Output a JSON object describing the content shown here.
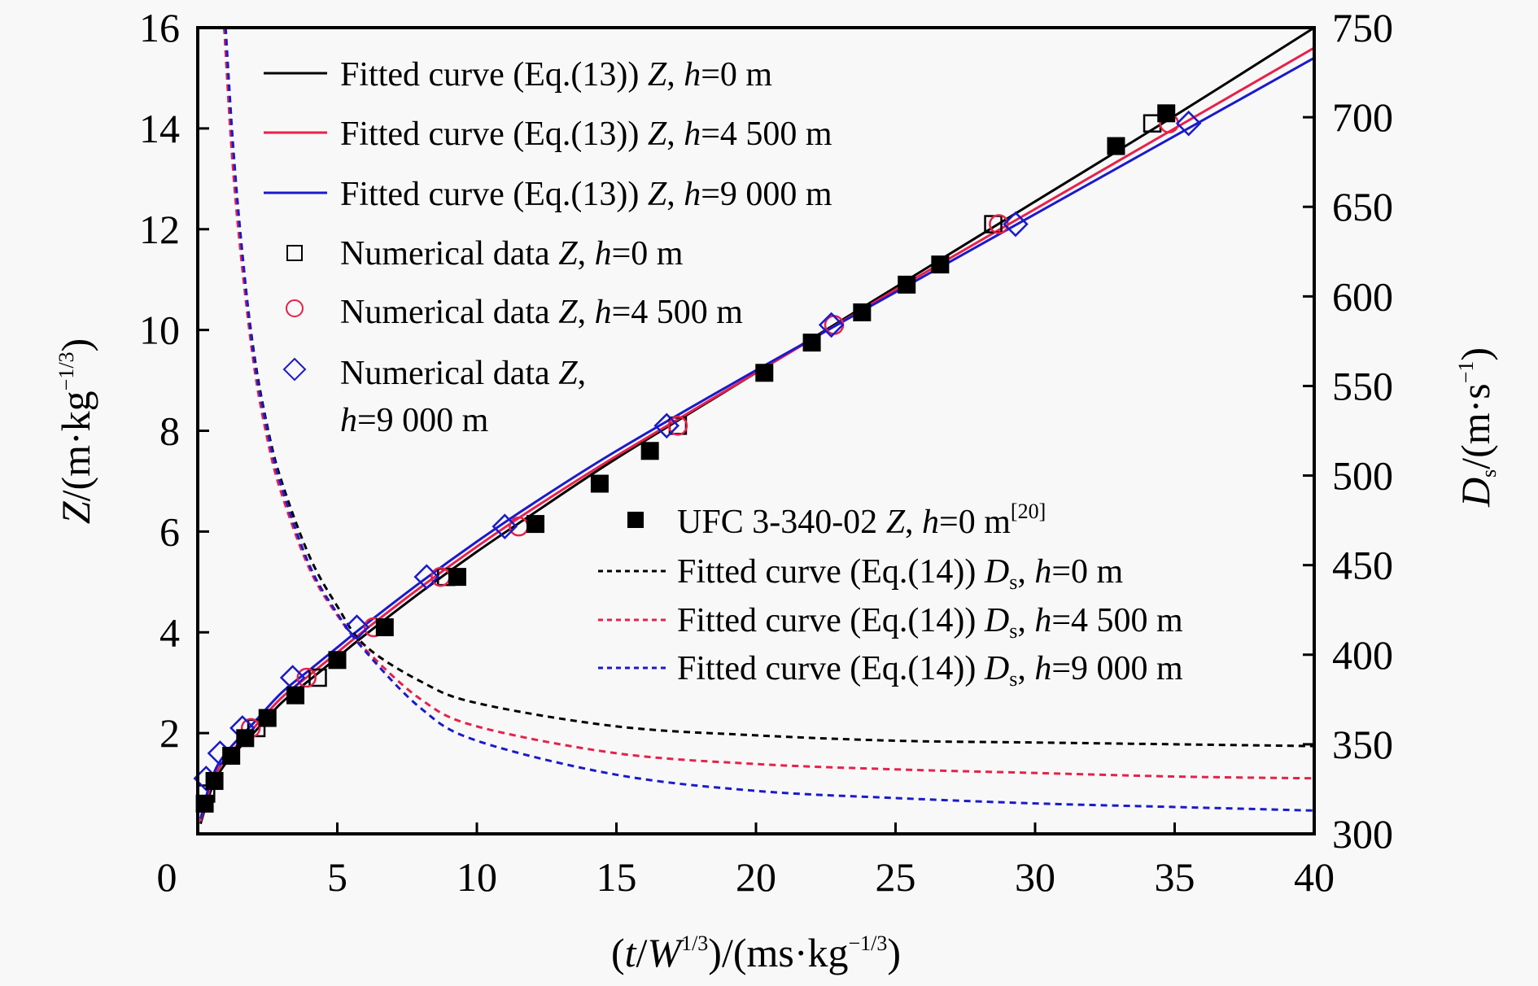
{
  "chart_data": {
    "type": "scatter",
    "title": "",
    "xlabel": "(t/W^1/3)/(ms·kg^-1/3)",
    "ylabel_left": "Z/(m·kg^-1/3)",
    "ylabel_right": "Ds/(m·s^-1)",
    "xlim": [
      0,
      40
    ],
    "ylim_left": [
      0,
      16
    ],
    "ylim_right": [
      300,
      750
    ],
    "x_ticks": [
      "0",
      "5",
      "10",
      "15",
      "20",
      "25",
      "30",
      "35",
      "40"
    ],
    "y_left_ticks": [
      "2",
      "4",
      "6",
      "8",
      "10",
      "12",
      "14",
      "16"
    ],
    "y_right_ticks": [
      "300",
      "350",
      "400",
      "450",
      "500",
      "550",
      "600",
      "650",
      "700",
      "750"
    ],
    "grid": false,
    "legend_position": "top-left and center-right",
    "series": [
      {
        "name": "Fitted curve (Eq.(13)) Z, h=0 m",
        "kind": "line",
        "axis": "left",
        "color": "#000000",
        "dash": "solid",
        "x": [
          0.1,
          0.5,
          1,
          2,
          3,
          4,
          5,
          6,
          8,
          10,
          12,
          15,
          20,
          25,
          30,
          35,
          40
        ],
        "y": [
          0.2,
          0.9,
          1.4,
          2.0,
          2.6,
          3.05,
          3.5,
          3.95,
          4.8,
          5.6,
          6.35,
          7.45,
          9.15,
          10.85,
          12.55,
          14.25,
          16.0
        ]
      },
      {
        "name": "Fitted curve (Eq.(13)) Z, h=4 500 m",
        "kind": "line",
        "axis": "left",
        "color": "#e8204a",
        "dash": "solid",
        "x": [
          0.1,
          0.5,
          1,
          2,
          3,
          4,
          5,
          6,
          8,
          10,
          12,
          15,
          20,
          25,
          30,
          35,
          40
        ],
        "y": [
          0.25,
          1.0,
          1.5,
          2.1,
          2.7,
          3.15,
          3.6,
          4.05,
          4.9,
          5.7,
          6.45,
          7.5,
          9.15,
          10.8,
          12.4,
          14.0,
          15.6
        ]
      },
      {
        "name": "Fitted curve (Eq.(13)) Z, h=9 000 m",
        "kind": "line",
        "axis": "left",
        "color": "#1a1acc",
        "dash": "solid",
        "x": [
          0.1,
          0.5,
          1,
          2,
          3,
          4,
          5,
          6,
          8,
          10,
          12,
          15,
          20,
          25,
          30,
          35,
          40
        ],
        "y": [
          0.3,
          1.1,
          1.6,
          2.2,
          2.8,
          3.25,
          3.7,
          4.15,
          5.0,
          5.8,
          6.55,
          7.6,
          9.2,
          10.75,
          12.3,
          13.85,
          15.4
        ]
      },
      {
        "name": "Numerical data Z, h=0 m",
        "kind": "marker",
        "marker": "square-open",
        "axis": "left",
        "color": "#000000",
        "x": [
          0.3,
          2.1,
          4.3,
          8.9,
          17.2,
          28.5,
          34.2
        ],
        "y": [
          0.8,
          2.1,
          3.1,
          5.1,
          8.1,
          12.1,
          14.1
        ]
      },
      {
        "name": "Numerical data Z, h=4 500 m",
        "kind": "marker",
        "marker": "circle-open",
        "axis": "left",
        "color": "#e8204a",
        "x": [
          1.9,
          3.9,
          6.3,
          8.7,
          11.5,
          17.2,
          22.8,
          28.7,
          34.8
        ],
        "y": [
          2.1,
          3.1,
          4.1,
          5.1,
          6.1,
          8.1,
          10.1,
          12.1,
          14.1
        ]
      },
      {
        "name": "Numerical data Z, h=9 000 m",
        "kind": "marker",
        "marker": "diamond-open",
        "axis": "left",
        "color": "#1a1acc",
        "x": [
          0.3,
          0.8,
          1.6,
          3.4,
          5.7,
          8.2,
          11.0,
          16.8,
          22.7,
          29.3,
          35.5
        ],
        "y": [
          1.1,
          1.6,
          2.1,
          3.1,
          4.1,
          5.1,
          6.1,
          8.1,
          10.1,
          12.1,
          14.1
        ]
      },
      {
        "name": "UFC 3-340-02 Z, h=0 m[20]",
        "kind": "marker",
        "marker": "square-filled",
        "axis": "left",
        "color": "#000000",
        "x": [
          0.25,
          0.6,
          1.2,
          1.7,
          2.5,
          3.5,
          5.0,
          6.7,
          9.3,
          12.1,
          14.4,
          16.2,
          20.3,
          22.0,
          23.8,
          25.4,
          26.6,
          32.9,
          34.7
        ],
        "y": [
          0.6,
          1.05,
          1.55,
          1.9,
          2.3,
          2.75,
          3.45,
          4.1,
          5.1,
          6.15,
          6.95,
          7.6,
          9.15,
          9.75,
          10.35,
          10.9,
          11.3,
          13.65,
          14.3
        ]
      },
      {
        "name": "Fitted curve (Eq.(14)) Ds, h=0 m",
        "kind": "line",
        "axis": "right",
        "color": "#000000",
        "dash": "dotted",
        "x": [
          0.95,
          1.2,
          1.5,
          2,
          2.5,
          3,
          4,
          5,
          6,
          8,
          10,
          15,
          20,
          25,
          30,
          35,
          40
        ],
        "y": [
          750,
          690,
          635,
          570,
          527,
          497,
          455,
          427,
          405,
          385,
          373,
          360,
          355,
          352,
          351,
          350,
          349
        ]
      },
      {
        "name": "Fitted curve (Eq.(14)) Ds, h=4 500 m",
        "kind": "line",
        "axis": "right",
        "color": "#e8204a",
        "dash": "dotted",
        "x": [
          0.95,
          1.2,
          1.5,
          2,
          2.5,
          3,
          4,
          5,
          6,
          8,
          10,
          15,
          20,
          25,
          30,
          35,
          40
        ],
        "y": [
          750,
          685,
          630,
          563,
          520,
          490,
          448,
          422,
          403,
          375,
          360,
          345,
          339,
          336,
          334,
          332,
          331
        ]
      },
      {
        "name": "Fitted curve (Eq.(14)) Ds, h=9 000 m",
        "kind": "line",
        "axis": "right",
        "color": "#1a1acc",
        "dash": "dotted",
        "x": [
          1.0,
          1.25,
          1.55,
          2,
          2.5,
          3,
          4,
          5,
          6,
          8,
          10,
          15,
          20,
          25,
          30,
          35,
          40
        ],
        "y": [
          750,
          688,
          632,
          568,
          525,
          494,
          450,
          423,
          402,
          370,
          352,
          333,
          324,
          320,
          317,
          315,
          313
        ]
      }
    ]
  },
  "legend_top": [
    {
      "text": "Fitted curve (Eq.(13)) ",
      "italic": "Z",
      "mid": ", ",
      "h": "h",
      "val": "=0 m"
    },
    {
      "text": "Fitted curve (Eq.(13)) ",
      "italic": "Z",
      "mid": ", ",
      "h": "h",
      "val": "=4 500 m"
    },
    {
      "text": "Fitted curve (Eq.(13)) ",
      "italic": "Z",
      "mid": ", ",
      "h": "h",
      "val": "=9 000 m"
    },
    {
      "text": "Numerical data ",
      "italic": "Z",
      "mid": ", ",
      "h": "h",
      "val": "=0 m"
    },
    {
      "text": "Numerical data ",
      "italic": "Z",
      "mid": ", ",
      "h": "h",
      "val": "=4 500 m"
    },
    {
      "text": "Numerical data ",
      "italic": "Z",
      "mid": ",",
      "h": "h",
      "val": "=9 000 m"
    }
  ],
  "legend_bottom": [
    {
      "text": "UFC 3-340-02 ",
      "italic": "Z",
      "mid": ", ",
      "h": "h",
      "val": "=0 m",
      "sup": "[20]"
    },
    {
      "text": "Fitted curve (Eq.(14)) ",
      "italic": "D",
      "sub": "s",
      "mid": ", ",
      "h": "h",
      "val": "=0 m"
    },
    {
      "text": "Fitted curve (Eq.(14)) ",
      "italic": "D",
      "sub": "s",
      "mid": ", ",
      "h": "h",
      "val": "=4 500 m"
    },
    {
      "text": "Fitted curve (Eq.(14)) ",
      "italic": "D",
      "sub": "s",
      "mid": ", ",
      "h": "h",
      "val": "=9 000 m"
    }
  ],
  "axis_titles": {
    "x": {
      "p1": "(",
      "t": "t",
      "slash": "/",
      "W": "W",
      "exp1": "1/3",
      "p2": ")/(ms·kg",
      "exp2": "−1/3",
      "p3": ")"
    },
    "y_left": {
      "Z": "Z",
      "p1": "/(m·kg",
      "exp": "−1/3",
      "p2": ")"
    },
    "y_right": {
      "D": "D",
      "sub": "s",
      "p1": "/(m·s",
      "exp": "−1",
      "p2": ")"
    }
  }
}
